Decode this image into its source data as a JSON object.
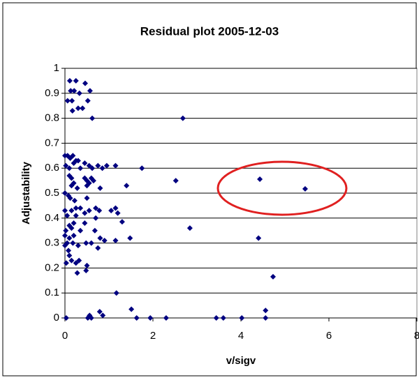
{
  "chart_data": {
    "type": "scatter",
    "title": "Residual plot 2005-12-03",
    "x_label": "v/sigv",
    "y_label": "Adjustability",
    "color": "#000080",
    "grid": true,
    "xlim": [
      0,
      8
    ],
    "xticks": [
      0,
      2,
      4,
      6,
      8
    ],
    "ylim": [
      0,
      1
    ],
    "yticks": [
      0,
      0.1,
      0.2,
      0.3,
      0.4,
      0.5,
      0.6,
      0.7,
      0.8,
      0.9,
      1
    ],
    "x": [
      0.11,
      0.25,
      0.46,
      0.13,
      0.21,
      0.33,
      0.57,
      0.06,
      0.16,
      0.52,
      0.17,
      0.3,
      0.4,
      0.62,
      2.68,
      4.43,
      5.46,
      2.52,
      1.75,
      1.4,
      2.84,
      4.4,
      4.73,
      1.48,
      1.3,
      1.17,
      1.51,
      1.63,
      1.94,
      2.3,
      3.44,
      3.6,
      4.02,
      4.56,
      4.56,
      0.03,
      0.56,
      0.6,
      0.79,
      0.86,
      0.52,
      0.0,
      0.06,
      0.12,
      0.18,
      0.25,
      0.02,
      0.1,
      0.2,
      0.35,
      0.45,
      0.55,
      0.62,
      0.75,
      0.85,
      0.95,
      1.15,
      0.3,
      0.15,
      0.2,
      0.45,
      0.5,
      0.55,
      0.6,
      0.65,
      0.5,
      0.15,
      0.1,
      0.28,
      0.8,
      0.08,
      0.0,
      0.12,
      0.22,
      0.5,
      0.0,
      0.15,
      0.25,
      0.35,
      0.55,
      0.7,
      0.78,
      1.05,
      1.15,
      1.2,
      0.45,
      0.05,
      0.25,
      0.45,
      0.2,
      0.1,
      0.7,
      0.02,
      0.15,
      0.35,
      0.68,
      0.0,
      0.1,
      0.2,
      0.8,
      0.9,
      1.15,
      0.05,
      0.18,
      0.3,
      0.48,
      0.6,
      0.75,
      0.0,
      0.08,
      0.1,
      0.15,
      0.03,
      0.25,
      0.32,
      0.5,
      0.48,
      0.28
    ],
    "values": [
      0.95,
      0.95,
      0.94,
      0.91,
      0.91,
      0.9,
      0.91,
      0.87,
      0.87,
      0.87,
      0.83,
      0.84,
      0.84,
      0.8,
      0.8,
      0.556,
      0.517,
      0.55,
      0.6,
      0.53,
      0.36,
      0.32,
      0.165,
      0.32,
      0.385,
      0.1,
      0.035,
      0,
      0,
      0,
      0,
      0,
      0,
      0.03,
      0,
      0,
      0.01,
      0,
      0.025,
      0.01,
      0,
      0.65,
      0.65,
      0.64,
      0.65,
      0.63,
      0.61,
      0.6,
      0.62,
      0.6,
      0.62,
      0.61,
      0.6,
      0.61,
      0.6,
      0.61,
      0.61,
      0.63,
      0.56,
      0.54,
      0.56,
      0.55,
      0.54,
      0.56,
      0.55,
      0.53,
      0.53,
      0.57,
      0.52,
      0.52,
      0.49,
      0.5,
      0.48,
      0.47,
      0.48,
      0.43,
      0.43,
      0.44,
      0.44,
      0.43,
      0.44,
      0.43,
      0.43,
      0.44,
      0.42,
      0.42,
      0.41,
      0.41,
      0.38,
      0.38,
      0.37,
      0.4,
      0.35,
      0.36,
      0.35,
      0.35,
      0.33,
      0.32,
      0.33,
      0.32,
      0.31,
      0.31,
      0.3,
      0.3,
      0.29,
      0.3,
      0.3,
      0.28,
      0.29,
      0.27,
      0.25,
      0.23,
      0.22,
      0.22,
      0.23,
      0.21,
      0.19,
      0.18
    ]
  }
}
